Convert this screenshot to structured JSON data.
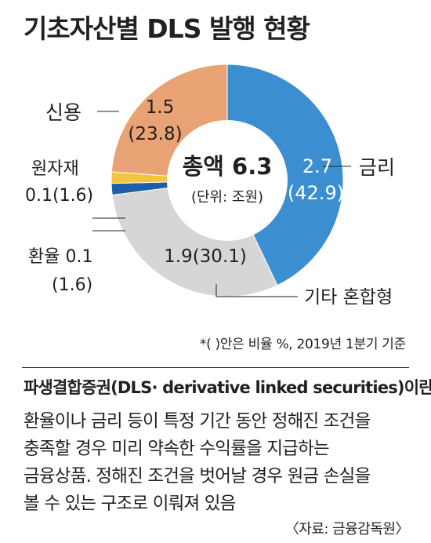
{
  "title": "기초자산별 DLS 발행 현황",
  "chart_data": {
    "type": "pie",
    "center_total": "총액 6.3",
    "center_unit": "(단위: 조원)",
    "slices": [
      {
        "name": "금리",
        "value": 2.7,
        "percent": 42.9,
        "color": "#3b8fd1",
        "value_label": "2.7",
        "percent_label": "(42.9)"
      },
      {
        "name": "기타 혼합형",
        "value": 1.9,
        "percent": 30.1,
        "color": "#d6d6d6",
        "value_label": "1.9(30.1)",
        "percent_label": ""
      },
      {
        "name": "환율",
        "value": 0.1,
        "percent": 1.6,
        "color": "#1f5fa6",
        "value_label": "환율 0.1",
        "percent_label": "(1.6)"
      },
      {
        "name": "원자재",
        "value": 0.1,
        "percent": 1.6,
        "color": "#f2c53d",
        "value_label": "0.1(1.6)",
        "percent_label": ""
      },
      {
        "name": "신용",
        "value": 1.5,
        "percent": 23.8,
        "color": "#e9a273",
        "value_label": "1.5",
        "percent_label": "(23.8)"
      }
    ],
    "labels": {
      "credit": "신용",
      "credit_value": "1.5",
      "credit_pct": "(23.8)",
      "raw": "원자재",
      "raw_value": "0.1(1.6)",
      "fx": "환율 0.1",
      "fx_pct": "(1.6)",
      "rate": "금리",
      "rate_value": "2.7",
      "rate_pct": "(42.9)",
      "other": "기타 혼합형",
      "other_value": "1.9(30.1)"
    }
  },
  "note": "*(  )안은 비율 %, 2019년 1분기 기준",
  "question_title": "파생결합증권(DLS· derivative linked securities)이란?",
  "explanation_lines": [
    "환율이나 금리 등이 특정 기간 동안 정해진 조건을",
    "충족할 경우 미리 약속한 수익률을 지급하는",
    "금융상품. 정해진 조건을 벗어날 경우 원금 손실을",
    "볼 수 있는 구조로 이뤄져 있음"
  ],
  "source": "〈자료: 금융감독원〉"
}
